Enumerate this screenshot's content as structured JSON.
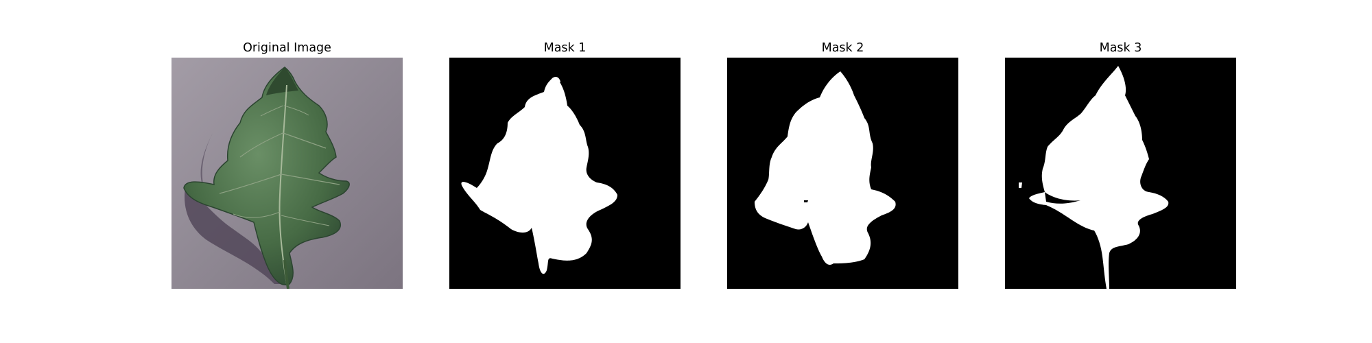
{
  "figure": {
    "panels": [
      {
        "title": "Original Image",
        "kind": "photo",
        "subject": "leaf-photo"
      },
      {
        "title": "Mask 1",
        "kind": "mask",
        "subject": "leaf-mask"
      },
      {
        "title": "Mask 2",
        "kind": "mask",
        "subject": "leaf-mask"
      },
      {
        "title": "Mask 3",
        "kind": "mask",
        "subject": "leaf-mask"
      }
    ]
  },
  "colors": {
    "background": "#ffffff",
    "mask_background": "#000000",
    "mask_foreground": "#ffffff",
    "surface": "#8e8791",
    "leaf": "#4a6e48",
    "leaf_dark": "#2f4a30",
    "shadow": "#4a3f50"
  }
}
